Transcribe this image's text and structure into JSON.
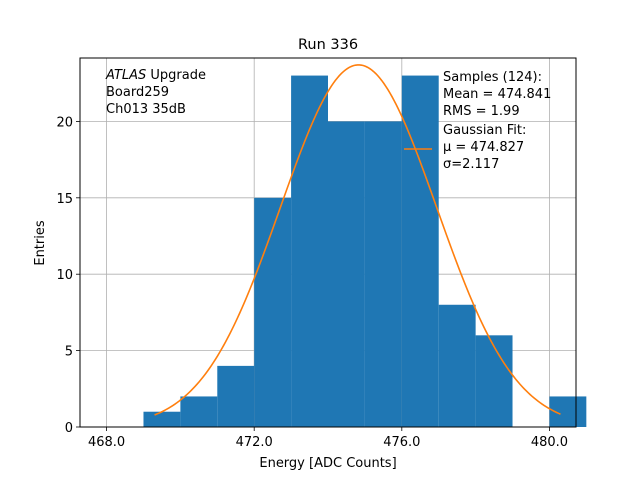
{
  "chart_data": {
    "type": "bar",
    "title": "Run 336",
    "xlabel": "Energy [ADC Counts]",
    "ylabel": "Entries",
    "xlim": [
      467.28,
      480.72
    ],
    "ylim": [
      0,
      24.15
    ],
    "grid": true,
    "x_ticks": [
      468,
      472,
      476,
      480
    ],
    "x_tick_labels": [
      "468.0",
      "472.0",
      "476.0",
      "480.0"
    ],
    "y_ticks": [
      0,
      5,
      10,
      15,
      20
    ],
    "y_tick_labels": [
      "0",
      "5",
      "10",
      "15",
      "20"
    ],
    "histogram": {
      "name": "Samples (124)",
      "color": "#1f77b4",
      "bin_edges": [
        469,
        470,
        471,
        472,
        473,
        474,
        475,
        476,
        477,
        478,
        479,
        480,
        481
      ],
      "counts": [
        1,
        2,
        4,
        15,
        23,
        20,
        20,
        23,
        8,
        6,
        0,
        2
      ]
    },
    "fit": {
      "name": "Gaussian Fit",
      "color": "#ff7f0e",
      "type": "gaussian",
      "mu": 474.827,
      "sigma": 2.117,
      "amplitude": 23.7,
      "x_range": [
        469.3,
        480.3
      ]
    },
    "annotation": {
      "lines": [
        {
          "italic": "ATLAS",
          "text": " Upgrade"
        },
        {
          "italic": "",
          "text": " Board259"
        },
        {
          "italic": "",
          "text": " Ch013 35dB"
        }
      ]
    },
    "legend": {
      "position": "top-right",
      "samples_lines": [
        "Samples (124):",
        " Mean = 474.841",
        " RMS = 1.99"
      ],
      "fit_lines": [
        "Gaussian Fit:",
        " μ = 474.827",
        " σ=2.117"
      ]
    }
  }
}
